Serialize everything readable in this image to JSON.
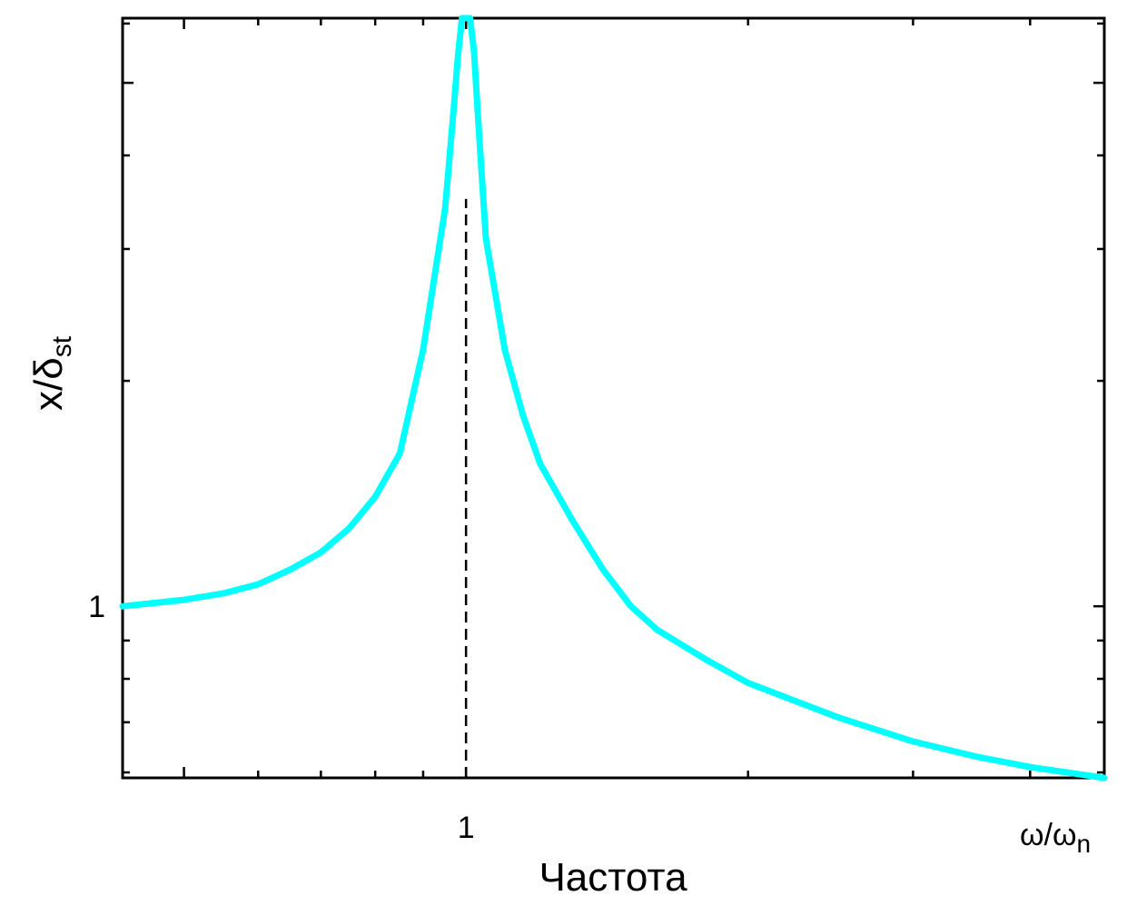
{
  "chart_data": {
    "type": "line",
    "x_scale": "log",
    "y_scale": "log",
    "xlabel": "Частота",
    "x_unit_label": {
      "base": "ω/ω",
      "sub": "n"
    },
    "ylabel": {
      "base": "x/δ",
      "sub": "st"
    },
    "x_ticks_labeled": [
      {
        "value": 1,
        "label": "1"
      }
    ],
    "y_ticks_labeled": [
      {
        "value": 1,
        "label": "1"
      }
    ],
    "xlim": [
      0.43,
      4.8
    ],
    "ylim": [
      0.59,
      6.1
    ],
    "grid": false,
    "resonance_line": {
      "x": 1,
      "style": "dashed",
      "y_top": 3.5
    },
    "series": [
      {
        "color": "#00FFFF",
        "x": [
          0.43,
          0.5,
          0.55,
          0.6,
          0.65,
          0.7,
          0.75,
          0.8,
          0.85,
          0.9,
          0.95,
          0.97,
          0.98,
          0.99,
          1.0,
          1.01,
          1.02,
          1.03,
          1.05,
          1.1,
          1.15,
          1.2,
          1.3,
          1.4,
          1.5,
          1.6,
          1.8,
          2.0,
          2.5,
          3.0,
          3.5,
          4.0,
          4.8
        ],
        "y": [
          1.0,
          1.02,
          1.04,
          1.07,
          1.12,
          1.18,
          1.27,
          1.4,
          1.6,
          2.2,
          3.4,
          4.6,
          5.4,
          6.1,
          6.1,
          6.1,
          5.5,
          4.5,
          3.1,
          2.2,
          1.8,
          1.55,
          1.3,
          1.12,
          1.0,
          0.93,
          0.85,
          0.79,
          0.71,
          0.66,
          0.63,
          0.61,
          0.59
        ]
      }
    ]
  }
}
